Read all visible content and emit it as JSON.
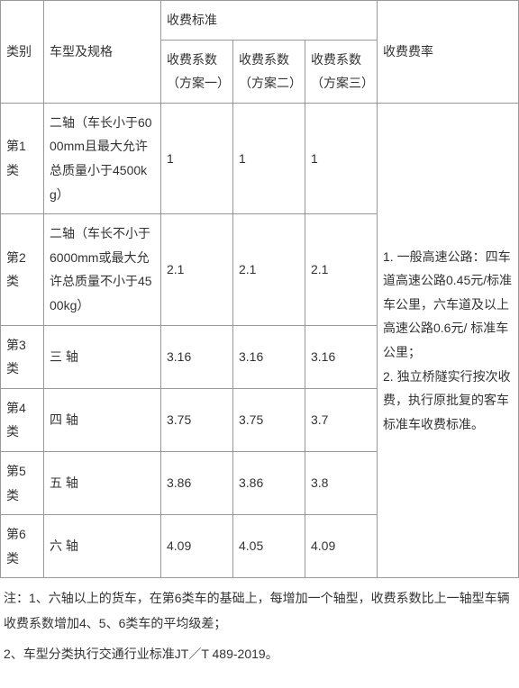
{
  "header": {
    "category": "类别",
    "spec": "车型及规格",
    "standard": "收费标准",
    "plan1": "收费系数（方案一）",
    "plan2": "收费系数（方案二）",
    "plan3": "收费系数（方案三）",
    "rate": "收费费率"
  },
  "rows": [
    {
      "cat": "第1类",
      "spec": "二轴（车长小于6000mm且最大允许总质量小于4500kg）",
      "p1": "1",
      "p2": "1",
      "p3": "1"
    },
    {
      "cat": "第2类",
      "spec": "二轴（车长不小于6000mm或最大允许总质量不小于4500kg）",
      "p1": "2.1",
      "p2": "2.1",
      "p3": "2.1"
    },
    {
      "cat": "第3类",
      "spec": "三 轴",
      "p1": "3.16",
      "p2": "3.16",
      "p3": "3.16"
    },
    {
      "cat": "第4类",
      "spec": "四 轴",
      "p1": "3.75",
      "p2": "3.75",
      "p3": "3.7"
    },
    {
      "cat": "第5类",
      "spec": "五 轴",
      "p1": "3.86",
      "p2": "3.86",
      "p3": "3.8"
    },
    {
      "cat": "第6类",
      "spec": "六 轴",
      "p1": "4.09",
      "p2": "4.05",
      "p3": "4.09"
    }
  ],
  "rate_text": "1. 一般高速公路：四车道高速公路0.45元/标准车公里，六车道及以上高速公路0.6元/ 标准车公里；\n2. 独立桥隧实行按次收费，执行原批复的客车标准车收费标准。",
  "notes": {
    "n1": "注：1、六轴以上的货车，在第6类车的基础上，每增加一个轴型，收费系数比上一轴型车辆收费系数增加4、5、6类车的平均级差；",
    "n2": "2、车型分类执行交通行业标准JT／T 489-2019。"
  },
  "style": {
    "border_color": "#999999",
    "text_color": "#333333",
    "font_size_pt": 10.5,
    "background": "#ffffff"
  }
}
